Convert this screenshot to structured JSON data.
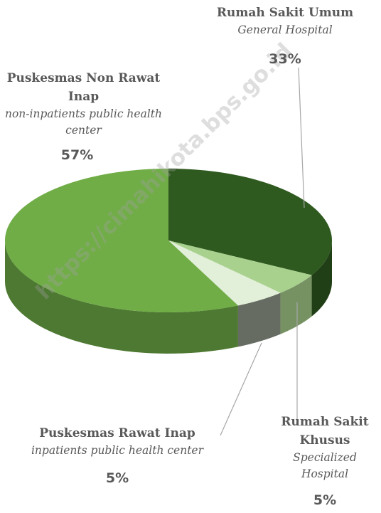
{
  "chart_data": {
    "type": "pie3d",
    "categories": [
      "Rumah Sakit Umum",
      "Rumah Sakit Khusus",
      "Puskesmas Rawat Inap",
      "Puskesmas Non Rawat Inap"
    ],
    "category_translations": [
      "General Hospital",
      "Specialized Hospital",
      "inpatients public health center",
      "non-inpatients public health center"
    ],
    "values": [
      33,
      5,
      5,
      57
    ],
    "value_labels": [
      "33%",
      "5%",
      "5%",
      "57%"
    ],
    "colors": [
      "#2f5a1f",
      "#a9d18e",
      "#e2efd9",
      "#70ad47"
    ],
    "watermark": "https://cimahikota.bps.go.id"
  }
}
